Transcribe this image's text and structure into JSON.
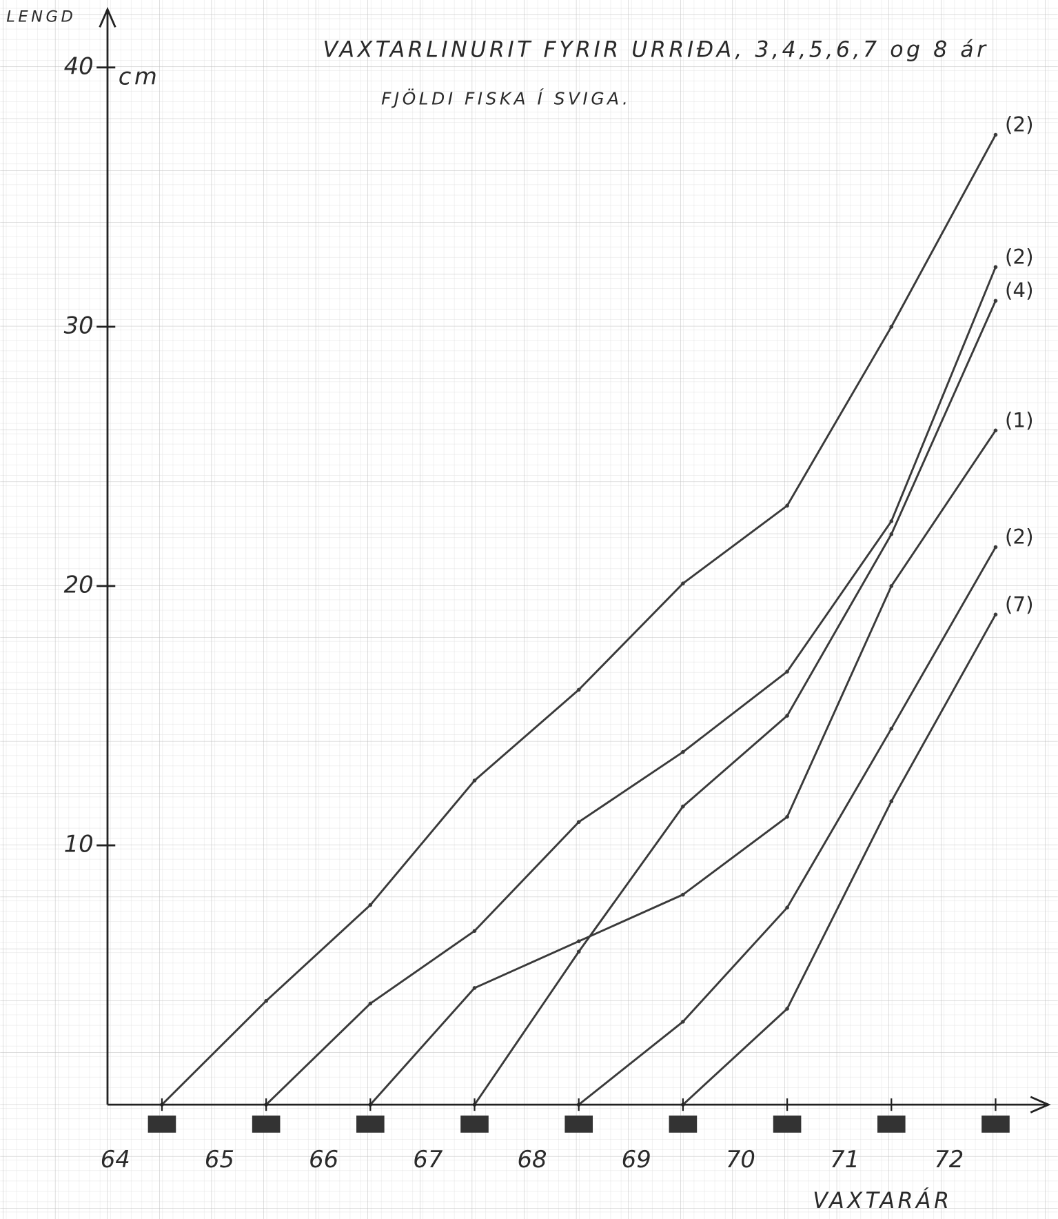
{
  "chart_data": {
    "type": "line",
    "title": "VAXTARLINURIT FYRIR URRIÐA, 3,4,5,6,7 og 8 ár",
    "subtitle": "FJÖLDI FISKA Í SVIGA.",
    "y_label": "LENGD",
    "y_unit": "cm",
    "x_label": "VAXTARÁR",
    "categories": [
      "64",
      "65",
      "66",
      "67",
      "68",
      "69",
      "70",
      "71",
      "72"
    ],
    "ylim": [
      0,
      42
    ],
    "yticks": [
      10,
      20,
      30,
      40
    ],
    "series": [
      {
        "name": "(2)",
        "color": "#3a3a3a",
        "values": [
          0,
          4.0,
          7.7,
          12.5,
          16.0,
          20.1,
          23.1,
          30.0,
          37.4
        ]
      },
      {
        "name": "(2)",
        "color": "#3a3a3a",
        "values": [
          null,
          0,
          3.9,
          6.7,
          10.9,
          13.6,
          16.7,
          22.5,
          32.3
        ]
      },
      {
        "name": "(1)",
        "color": "#3a3a3a",
        "values": [
          null,
          null,
          0,
          4.5,
          6.3,
          8.1,
          11.1,
          20.0,
          26.0
        ]
      },
      {
        "name": "(4)",
        "color": "#3a3a3a",
        "values": [
          null,
          null,
          null,
          0,
          5.9,
          11.5,
          15.0,
          22.0,
          31.0
        ]
      },
      {
        "name": "(2)",
        "color": "#3a3a3a",
        "values": [
          null,
          null,
          null,
          null,
          0,
          3.2,
          7.6,
          14.5,
          21.5
        ]
      },
      {
        "name": "(7)",
        "color": "#3a3a3a",
        "values": [
          null,
          null,
          null,
          null,
          null,
          0,
          3.7,
          11.7,
          18.9
        ]
      }
    ]
  }
}
